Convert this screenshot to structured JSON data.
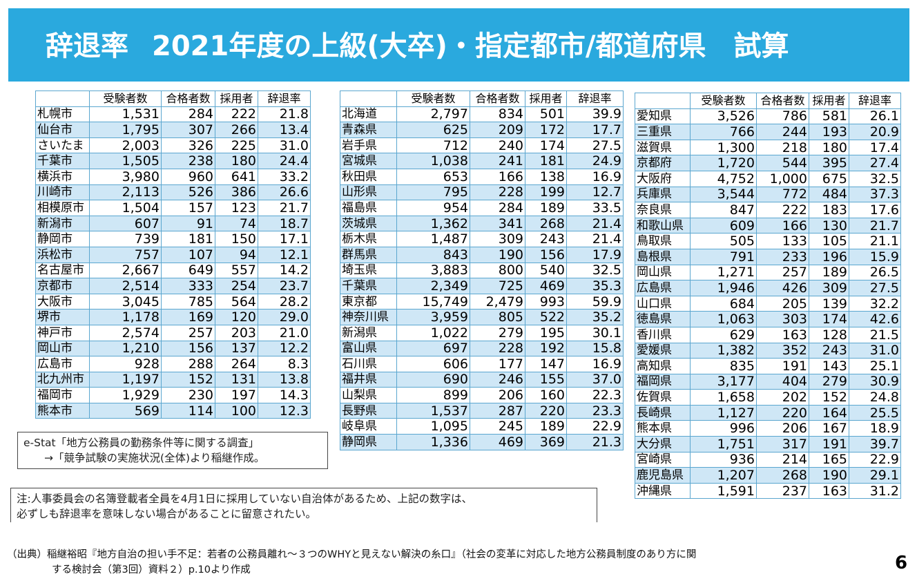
{
  "header": {
    "title_main": "辞退率",
    "title_sub": "2021年度の上級(大卒)・指定都市/都道府県　試算"
  },
  "columns": {
    "exam": "受験者数",
    "pass": "合格者数",
    "hire": "採用者",
    "rate": "辞退率"
  },
  "cities": [
    {
      "name": "札幌市",
      "exam": "1,531",
      "pass": "284",
      "hire": "222",
      "rate": "21.8"
    },
    {
      "name": "仙台市",
      "exam": "1,795",
      "pass": "307",
      "hire": "266",
      "rate": "13.4"
    },
    {
      "name": "さいたま",
      "exam": "2,003",
      "pass": "326",
      "hire": "225",
      "rate": "31.0"
    },
    {
      "name": "千葉市",
      "exam": "1,505",
      "pass": "238",
      "hire": "180",
      "rate": "24.4"
    },
    {
      "name": "横浜市",
      "exam": "3,980",
      "pass": "960",
      "hire": "641",
      "rate": "33.2"
    },
    {
      "name": "川崎市",
      "exam": "2,113",
      "pass": "526",
      "hire": "386",
      "rate": "26.6"
    },
    {
      "name": "相模原市",
      "exam": "1,504",
      "pass": "157",
      "hire": "123",
      "rate": "21.7"
    },
    {
      "name": "新潟市",
      "exam": "607",
      "pass": "91",
      "hire": "74",
      "rate": "18.7"
    },
    {
      "name": "静岡市",
      "exam": "739",
      "pass": "181",
      "hire": "150",
      "rate": "17.1"
    },
    {
      "name": "浜松市",
      "exam": "757",
      "pass": "107",
      "hire": "94",
      "rate": "12.1"
    },
    {
      "name": "名古屋市",
      "exam": "2,667",
      "pass": "649",
      "hire": "557",
      "rate": "14.2"
    },
    {
      "name": "京都市",
      "exam": "2,514",
      "pass": "333",
      "hire": "254",
      "rate": "23.7"
    },
    {
      "name": "大阪市",
      "exam": "3,045",
      "pass": "785",
      "hire": "564",
      "rate": "28.2"
    },
    {
      "name": "堺市",
      "exam": "1,178",
      "pass": "169",
      "hire": "120",
      "rate": "29.0"
    },
    {
      "name": "神戸市",
      "exam": "2,574",
      "pass": "257",
      "hire": "203",
      "rate": "21.0"
    },
    {
      "name": "岡山市",
      "exam": "1,210",
      "pass": "156",
      "hire": "137",
      "rate": "12.2"
    },
    {
      "name": "広島市",
      "exam": "928",
      "pass": "288",
      "hire": "264",
      "rate": "8.3"
    },
    {
      "name": "北九州市",
      "exam": "1,197",
      "pass": "152",
      "hire": "131",
      "rate": "13.8"
    },
    {
      "name": "福岡市",
      "exam": "1,929",
      "pass": "230",
      "hire": "197",
      "rate": "14.3"
    },
    {
      "name": "熊本市",
      "exam": "569",
      "pass": "114",
      "hire": "100",
      "rate": "12.3"
    }
  ],
  "prefectures_1": [
    {
      "name": "北海道",
      "exam": "2,797",
      "pass": "834",
      "hire": "501",
      "rate": "39.9"
    },
    {
      "name": "青森県",
      "exam": "625",
      "pass": "209",
      "hire": "172",
      "rate": "17.7"
    },
    {
      "name": "岩手県",
      "exam": "712",
      "pass": "240",
      "hire": "174",
      "rate": "27.5"
    },
    {
      "name": "宮城県",
      "exam": "1,038",
      "pass": "241",
      "hire": "181",
      "rate": "24.9"
    },
    {
      "name": "秋田県",
      "exam": "653",
      "pass": "166",
      "hire": "138",
      "rate": "16.9"
    },
    {
      "name": "山形県",
      "exam": "795",
      "pass": "228",
      "hire": "199",
      "rate": "12.7"
    },
    {
      "name": "福島県",
      "exam": "954",
      "pass": "284",
      "hire": "189",
      "rate": "33.5"
    },
    {
      "name": "茨城県",
      "exam": "1,362",
      "pass": "341",
      "hire": "268",
      "rate": "21.4"
    },
    {
      "name": "栃木県",
      "exam": "1,487",
      "pass": "309",
      "hire": "243",
      "rate": "21.4"
    },
    {
      "name": "群馬県",
      "exam": "843",
      "pass": "190",
      "hire": "156",
      "rate": "17.9"
    },
    {
      "name": "埼玉県",
      "exam": "3,883",
      "pass": "800",
      "hire": "540",
      "rate": "32.5"
    },
    {
      "name": "千葉県",
      "exam": "2,349",
      "pass": "725",
      "hire": "469",
      "rate": "35.3"
    },
    {
      "name": "東京都",
      "exam": "15,749",
      "pass": "2,479",
      "hire": "993",
      "rate": "59.9"
    },
    {
      "name": "神奈川県",
      "exam": "3,959",
      "pass": "805",
      "hire": "522",
      "rate": "35.2"
    },
    {
      "name": "新潟県",
      "exam": "1,022",
      "pass": "279",
      "hire": "195",
      "rate": "30.1"
    },
    {
      "name": "富山県",
      "exam": "697",
      "pass": "228",
      "hire": "192",
      "rate": "15.8"
    },
    {
      "name": "石川県",
      "exam": "606",
      "pass": "177",
      "hire": "147",
      "rate": "16.9"
    },
    {
      "name": "福井県",
      "exam": "690",
      "pass": "246",
      "hire": "155",
      "rate": "37.0"
    },
    {
      "name": "山梨県",
      "exam": "899",
      "pass": "206",
      "hire": "160",
      "rate": "22.3"
    },
    {
      "name": "長野県",
      "exam": "1,537",
      "pass": "287",
      "hire": "220",
      "rate": "23.3"
    },
    {
      "name": "岐阜県",
      "exam": "1,095",
      "pass": "245",
      "hire": "189",
      "rate": "22.9"
    },
    {
      "name": "静岡県",
      "exam": "1,336",
      "pass": "469",
      "hire": "369",
      "rate": "21.3"
    }
  ],
  "prefectures_2": [
    {
      "name": "愛知県",
      "exam": "3,526",
      "pass": "786",
      "hire": "581",
      "rate": "26.1"
    },
    {
      "name": "三重県",
      "exam": "766",
      "pass": "244",
      "hire": "193",
      "rate": "20.9"
    },
    {
      "name": "滋賀県",
      "exam": "1,300",
      "pass": "218",
      "hire": "180",
      "rate": "17.4"
    },
    {
      "name": "京都府",
      "exam": "1,720",
      "pass": "544",
      "hire": "395",
      "rate": "27.4"
    },
    {
      "name": "大阪府",
      "exam": "4,752",
      "pass": "1,000",
      "hire": "675",
      "rate": "32.5"
    },
    {
      "name": "兵庫県",
      "exam": "3,544",
      "pass": "772",
      "hire": "484",
      "rate": "37.3"
    },
    {
      "name": "奈良県",
      "exam": "847",
      "pass": "222",
      "hire": "183",
      "rate": "17.6"
    },
    {
      "name": "和歌山県",
      "exam": "609",
      "pass": "166",
      "hire": "130",
      "rate": "21.7"
    },
    {
      "name": "鳥取県",
      "exam": "505",
      "pass": "133",
      "hire": "105",
      "rate": "21.1"
    },
    {
      "name": "島根県",
      "exam": "791",
      "pass": "233",
      "hire": "196",
      "rate": "15.9"
    },
    {
      "name": "岡山県",
      "exam": "1,271",
      "pass": "257",
      "hire": "189",
      "rate": "26.5"
    },
    {
      "name": "広島県",
      "exam": "1,946",
      "pass": "426",
      "hire": "309",
      "rate": "27.5"
    },
    {
      "name": "山口県",
      "exam": "684",
      "pass": "205",
      "hire": "139",
      "rate": "32.2"
    },
    {
      "name": "徳島県",
      "exam": "1,063",
      "pass": "303",
      "hire": "174",
      "rate": "42.6"
    },
    {
      "name": "香川県",
      "exam": "629",
      "pass": "163",
      "hire": "128",
      "rate": "21.5"
    },
    {
      "name": "愛媛県",
      "exam": "1,382",
      "pass": "352",
      "hire": "243",
      "rate": "31.0"
    },
    {
      "name": "高知県",
      "exam": "835",
      "pass": "191",
      "hire": "143",
      "rate": "25.1"
    },
    {
      "name": "福岡県",
      "exam": "3,177",
      "pass": "404",
      "hire": "279",
      "rate": "30.9"
    },
    {
      "name": "佐賀県",
      "exam": "1,658",
      "pass": "202",
      "hire": "152",
      "rate": "24.8"
    },
    {
      "name": "長崎県",
      "exam": "1,127",
      "pass": "220",
      "hire": "164",
      "rate": "25.5"
    },
    {
      "name": "熊本県",
      "exam": "996",
      "pass": "206",
      "hire": "167",
      "rate": "18.9"
    },
    {
      "name": "大分県",
      "exam": "1,751",
      "pass": "317",
      "hire": "191",
      "rate": "39.7"
    },
    {
      "name": "宮崎県",
      "exam": "936",
      "pass": "214",
      "hire": "165",
      "rate": "22.9"
    },
    {
      "name": "鹿児島県",
      "exam": "1,207",
      "pass": "268",
      "hire": "190",
      "rate": "29.1"
    },
    {
      "name": "沖縄県",
      "exam": "1,591",
      "pass": "237",
      "hire": "163",
      "rate": "31.2"
    }
  ],
  "source_box": {
    "line1": "e-Stat「地方公務員の勤務条件等に関する調査」",
    "line2": "→「競争試験の実施状況(全体)より稲継作成。"
  },
  "note": {
    "line1": "注:人事委員会の名簿登載者全員を4月1日に採用していない自治体があるため、上記の数字は、",
    "line2": "必ずしも辞退率を意味しない場合があることに留意されたい。"
  },
  "footer": {
    "line1": "（出典）稲継裕昭『地方自治の担い手不足：若者の公務員離れ～３つのWHYと見えない解決の糸口』（社会の変革に対応した地方公務員制度のあり方に関",
    "line2": "する検討会（第3回）資料２）p.10より作成"
  },
  "page_number": "6",
  "colors": {
    "header_bg": "#2aa9de",
    "row_band": "#cfe7f6",
    "grid_line": "#5aa6cf"
  }
}
